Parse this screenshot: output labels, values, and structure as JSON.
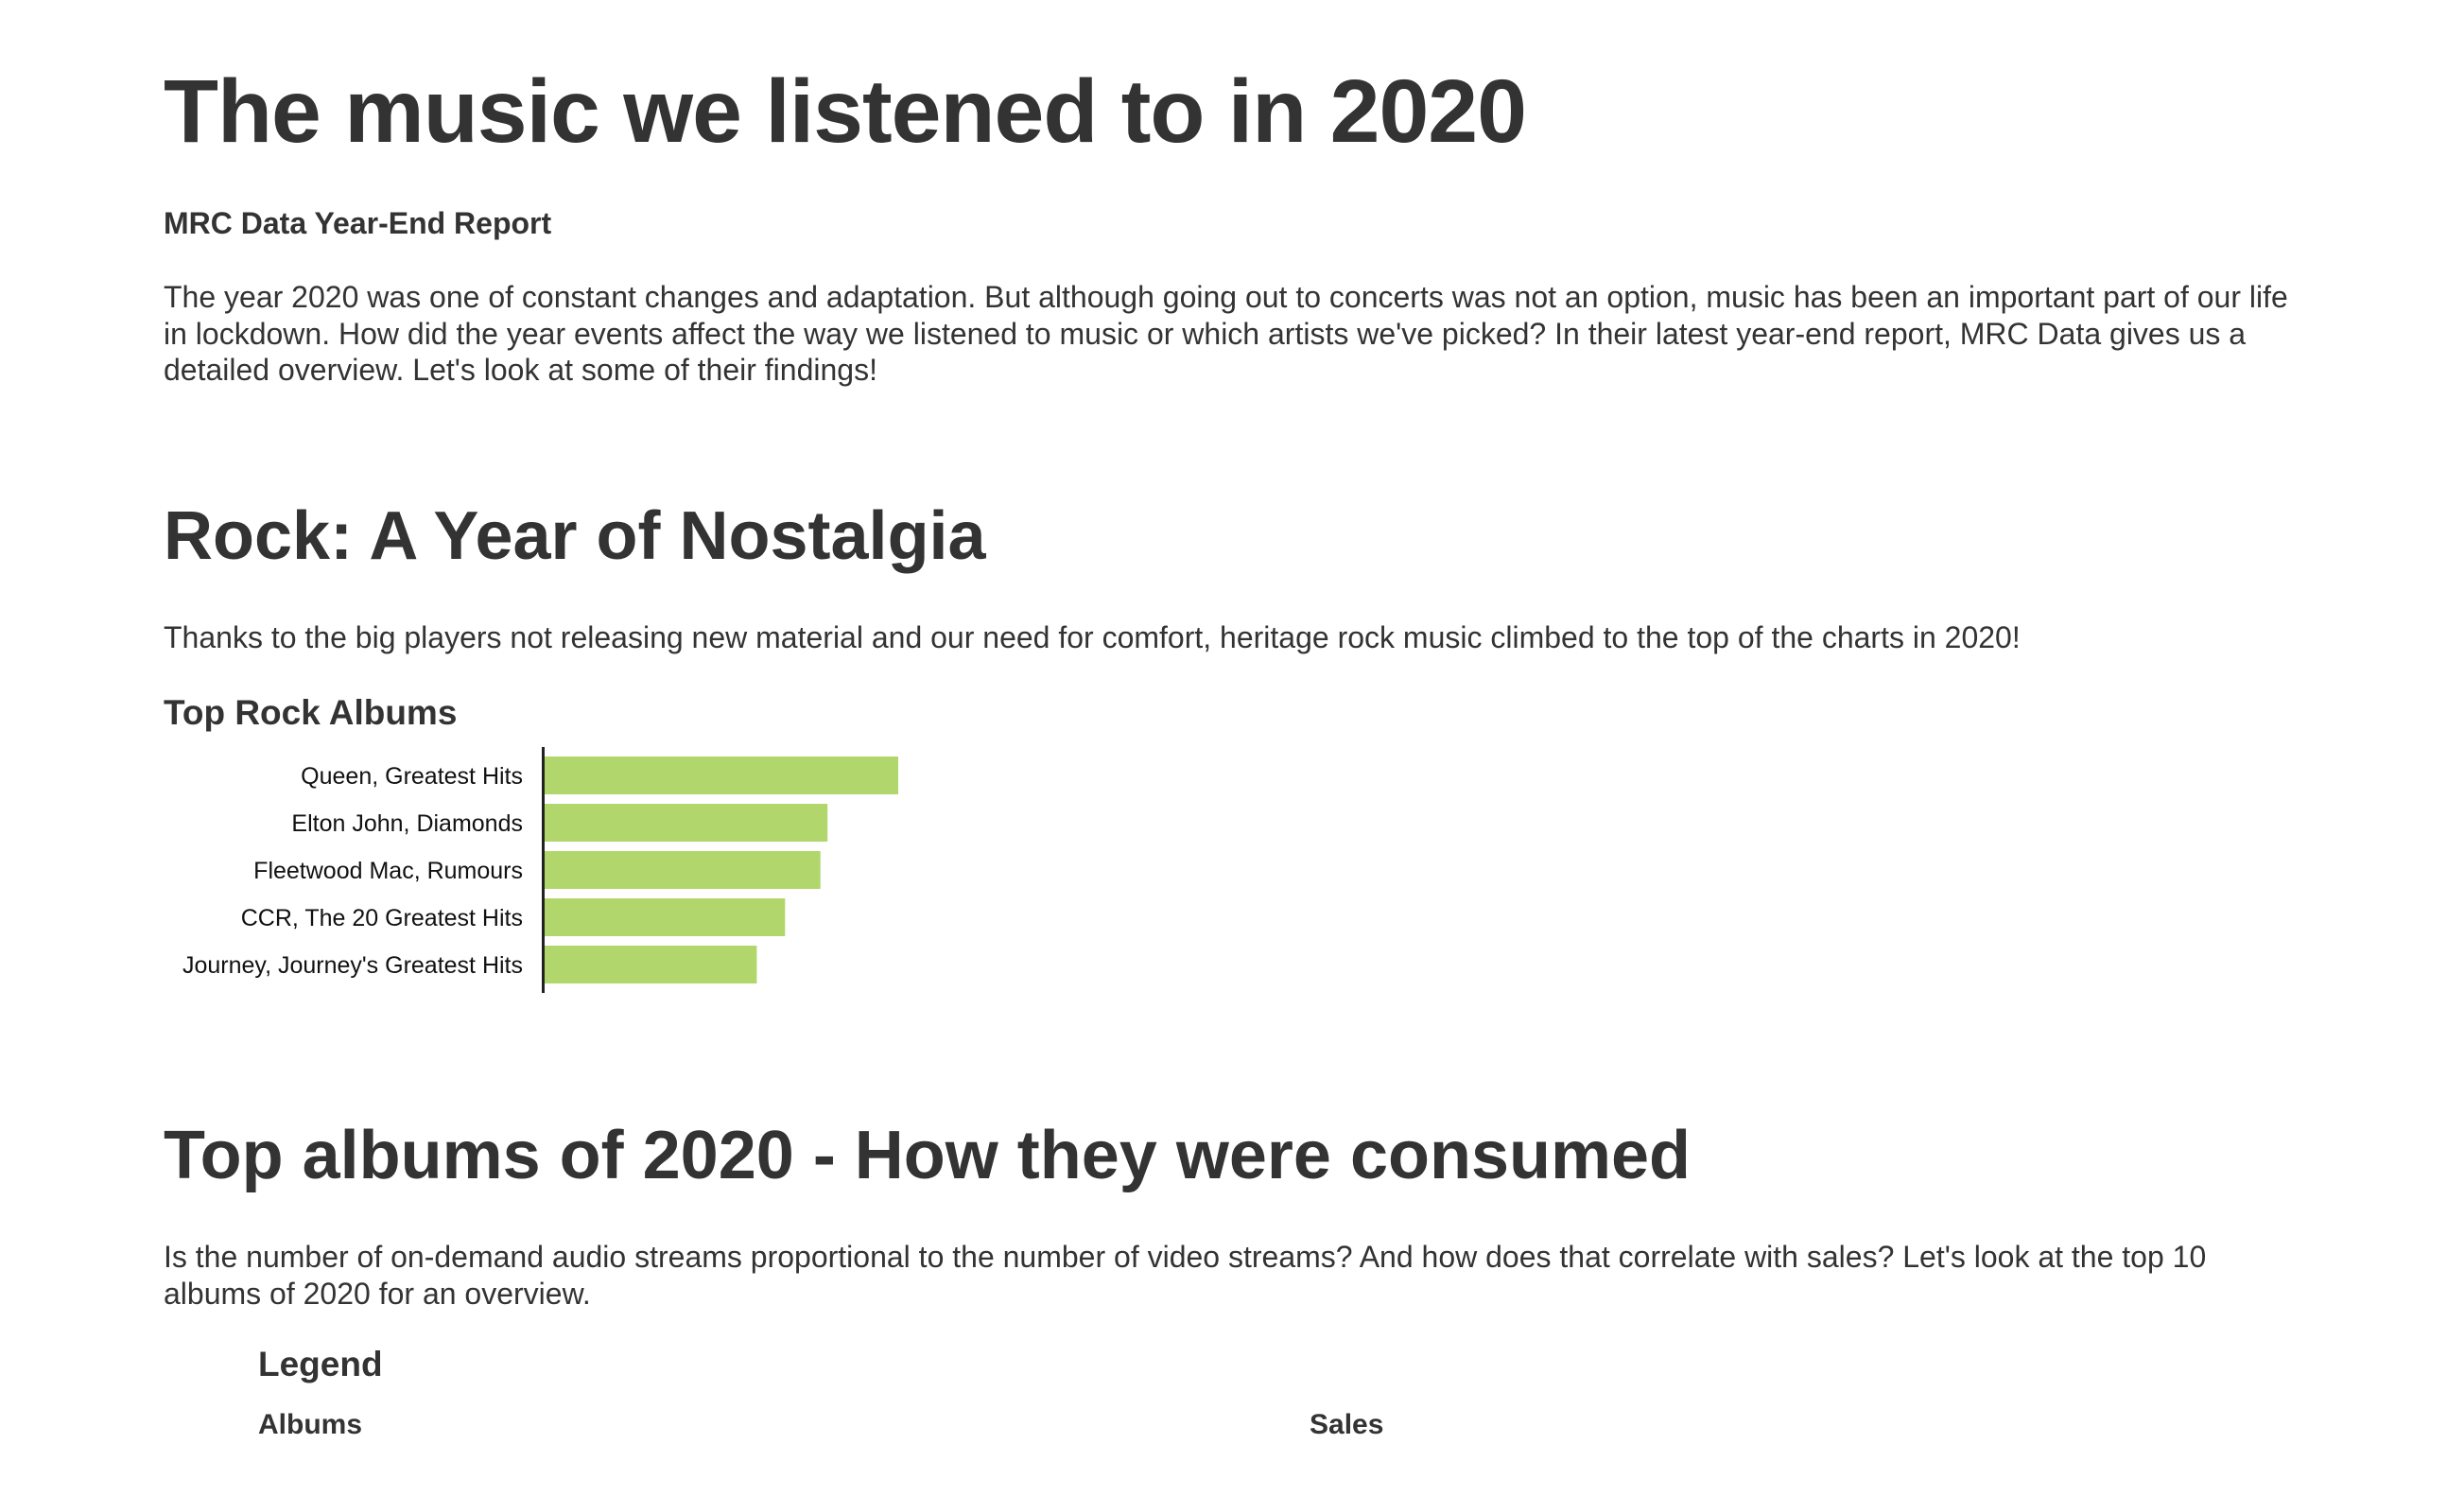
{
  "page": {
    "title": "The music we listened to in 2020",
    "subtitle": "MRC Data Year-End Report",
    "intro": "The year 2020 was one of constant changes and adaptation. But although going out to concerts was not an option, music has been an important part of our life in lockdown. How did the year events affect the way we listened to music or which artists we've picked? In their latest year-end report, MRC Data gives us a detailed overview. Let's look at some of their findings!"
  },
  "rock_section": {
    "heading": "Rock: A Year of Nostalgia",
    "description": "Thanks to the big players not releasing new material and our need for comfort, heritage rock music climbed to the top of the charts in 2020!",
    "chart_title": "Top Rock Albums"
  },
  "albums_section": {
    "heading": "Top albums of 2020 - How they were consumed",
    "description": "Is the number of on-demand audio streams proportional to the number of video streams? And how does that correlate with sales? Let's look at the top 10 albums of 2020 for an overview."
  },
  "legend": {
    "title": "Legend",
    "albums_label": "Albums",
    "sales_label": "Sales"
  },
  "chart_data": {
    "type": "bar",
    "orientation": "horizontal",
    "title": "Top Rock Albums",
    "xlabel": "",
    "ylabel": "",
    "categories": [
      "Queen, Greatest Hits",
      "Elton John, Diamonds",
      "Fleetwood Mac, Rumours",
      "CCR, The 20 Greatest Hits",
      "Journey, Journey's Greatest Hits"
    ],
    "values": [
      1.0,
      0.8,
      0.78,
      0.68,
      0.6
    ],
    "x_axis_visible": false,
    "grid": false,
    "bar_color": "#b1d76c",
    "axis_color": "#222222"
  }
}
